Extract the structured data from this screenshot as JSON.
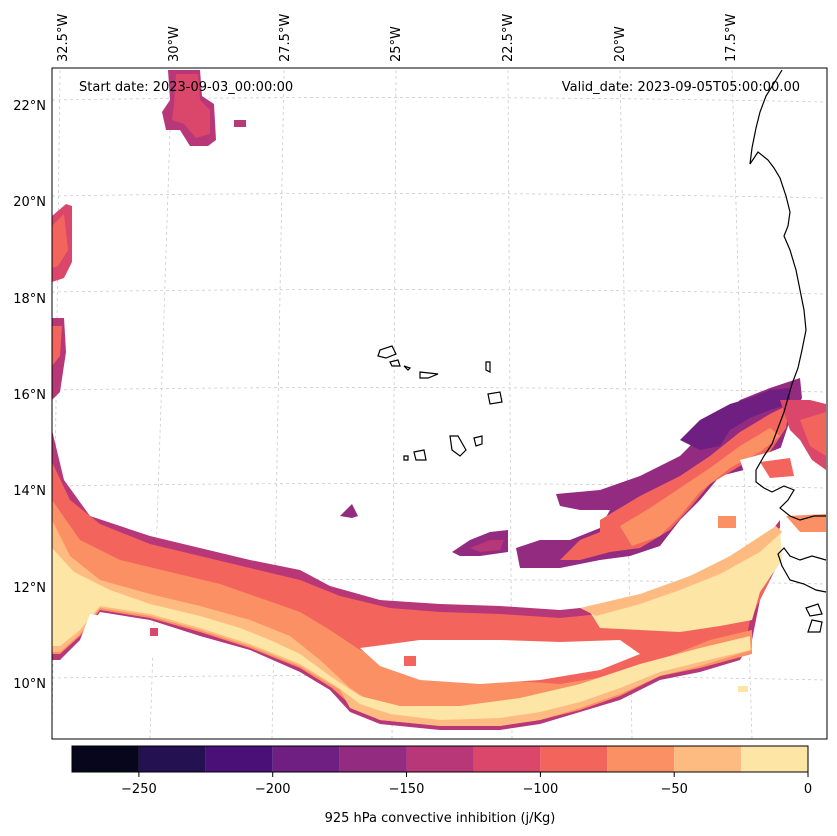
{
  "map": {
    "header": {
      "start_label": "Start date: 2023-09-03_00:00:00",
      "valid_label": "Valid_date: 2023-09-05T05:00:00.00"
    },
    "longitude_ticks": [
      "32.5°W",
      "30°W",
      "27.5°W",
      "25°W",
      "22.5°W",
      "20°W",
      "17.5°W"
    ],
    "latitude_ticks": [
      "22°N",
      "20°N",
      "18°N",
      "16°N",
      "14°N",
      "12°N",
      "10°N"
    ],
    "coastline_color": "#000000",
    "gridline_color": "#cccccc"
  },
  "colorbar": {
    "label": "925 hPa convective inhibition (j/Kg)",
    "tick_labels": [
      "−250",
      "−200",
      "−150",
      "−100",
      "−50",
      "0"
    ],
    "levels": [
      -275,
      -250,
      -225,
      -200,
      -175,
      -150,
      -125,
      -100,
      -75,
      -50,
      -25,
      0
    ],
    "colors": [
      "#07061c",
      "#231151",
      "#4b1078",
      "#6f1f81",
      "#932b80",
      "#b73779",
      "#db476a",
      "#f3655c",
      "#fc9065",
      "#febb81",
      "#fde5a6"
    ]
  }
}
